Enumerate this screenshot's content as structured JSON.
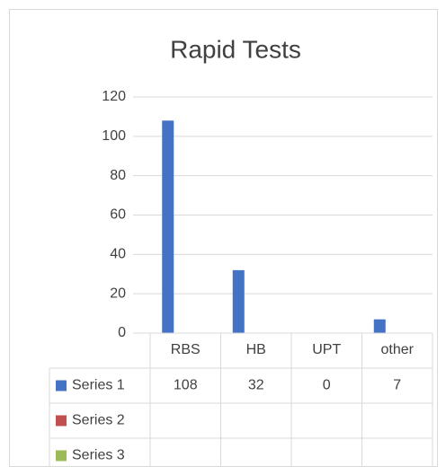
{
  "chart_data": {
    "type": "bar",
    "title": "Rapid Tests",
    "categories": [
      "RBS",
      "HB",
      "UPT",
      "other"
    ],
    "series": [
      {
        "name": "Series 1",
        "color": "#4472c4",
        "values": [
          108,
          32,
          0,
          7
        ]
      },
      {
        "name": "Series 2",
        "color": "#c0504d",
        "values": [
          null,
          null,
          null,
          null
        ]
      },
      {
        "name": "Series 3",
        "color": "#9bbb59",
        "values": [
          null,
          null,
          null,
          null
        ]
      }
    ],
    "ylim": [
      0,
      120
    ],
    "yticks": [
      0,
      20,
      40,
      60,
      80,
      100,
      120
    ],
    "grid": true,
    "data_table": true
  }
}
